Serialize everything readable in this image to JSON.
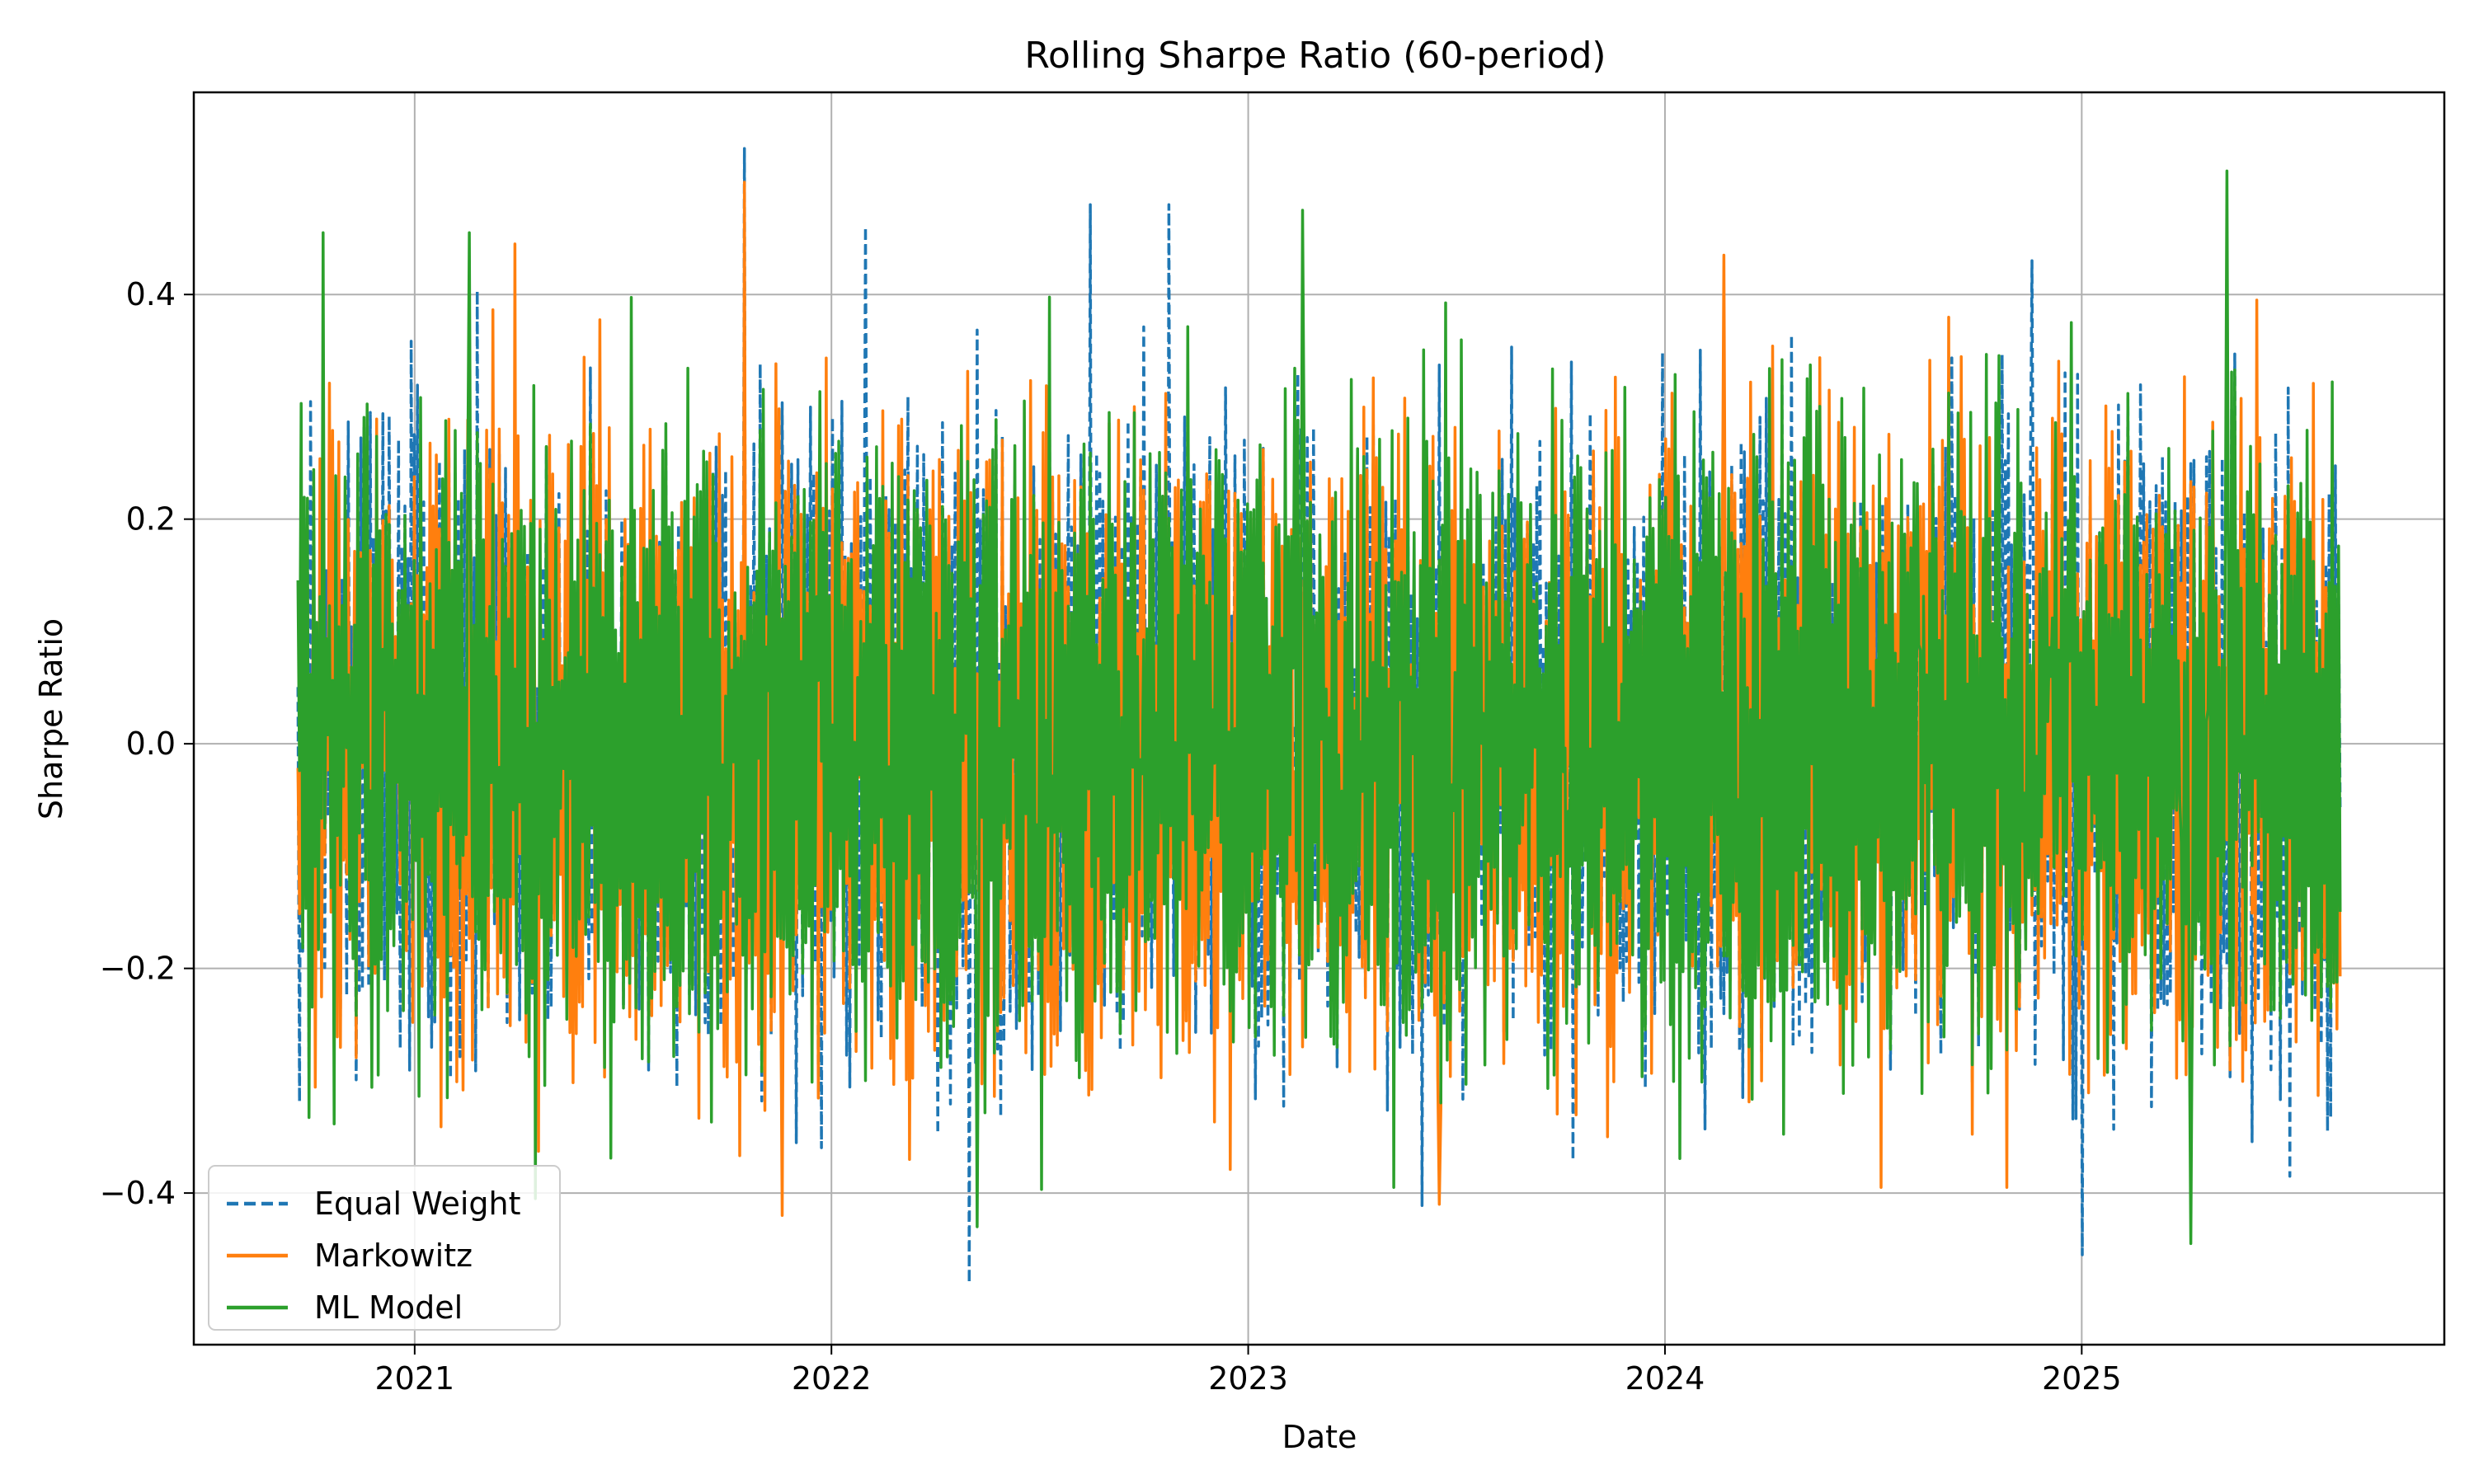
{
  "chart_data": {
    "type": "line",
    "title": "Rolling Sharpe Ratio (60-period)",
    "xlabel": "Date",
    "ylabel": "Sharpe Ratio",
    "xlim": [
      2020.47,
      2025.87
    ],
    "ylim": [
      -0.535,
      0.58
    ],
    "x_ticks": [
      2021,
      2022,
      2023,
      2024,
      2025
    ],
    "x_tick_labels": [
      "2021",
      "2022",
      "2023",
      "2024",
      "2025"
    ],
    "y_ticks": [
      -0.4,
      -0.2,
      0.0,
      0.2,
      0.4
    ],
    "y_tick_labels": [
      "−0.4",
      "−0.2",
      "0.0",
      "0.2",
      "0.4"
    ],
    "grid": true,
    "legend_position": "lower-left",
    "x_start": 2020.72,
    "x_end": 2025.62,
    "points_per_series": 1300,
    "series": [
      {
        "name": "Equal Weight",
        "color": "#1f77b4",
        "style": "dashed",
        "typical_range": [
          -0.22,
          0.22
        ],
        "max": 0.53,
        "min": -0.48,
        "extremes": [
          {
            "x": 2021.79,
            "y": 0.53
          },
          {
            "x": 2022.08,
            "y": 0.46
          },
          {
            "x": 2022.62,
            "y": 0.48
          },
          {
            "x": 2022.81,
            "y": 0.48
          },
          {
            "x": 2022.33,
            "y": -0.48
          },
          {
            "x": 2025.0,
            "y": -0.455
          },
          {
            "x": 2024.88,
            "y": 0.43
          },
          {
            "x": 2025.5,
            "y": -0.385
          }
        ]
      },
      {
        "name": "Markowitz",
        "color": "#ff7f0e",
        "style": "solid",
        "typical_range": [
          -0.22,
          0.22
        ],
        "max": 0.5,
        "min": -0.42,
        "extremes": [
          {
            "x": 2021.79,
            "y": 0.5
          },
          {
            "x": 2021.24,
            "y": 0.445
          },
          {
            "x": 2024.14,
            "y": 0.435
          },
          {
            "x": 2023.46,
            "y": -0.41
          },
          {
            "x": 2021.88,
            "y": -0.42
          },
          {
            "x": 2024.52,
            "y": -0.395
          },
          {
            "x": 2024.82,
            "y": -0.395
          },
          {
            "x": 2025.42,
            "y": 0.395
          }
        ]
      },
      {
        "name": "ML Model",
        "color": "#2ca02c",
        "style": "solid",
        "typical_range": [
          -0.22,
          0.22
        ],
        "max": 0.51,
        "min": -0.445,
        "extremes": [
          {
            "x": 2025.35,
            "y": 0.51
          },
          {
            "x": 2023.13,
            "y": 0.475
          },
          {
            "x": 2020.78,
            "y": 0.455
          },
          {
            "x": 2021.13,
            "y": 0.455
          },
          {
            "x": 2025.26,
            "y": -0.445
          },
          {
            "x": 2022.35,
            "y": -0.43
          },
          {
            "x": 2021.29,
            "y": -0.405
          },
          {
            "x": 2023.35,
            "y": -0.395
          }
        ]
      }
    ]
  }
}
